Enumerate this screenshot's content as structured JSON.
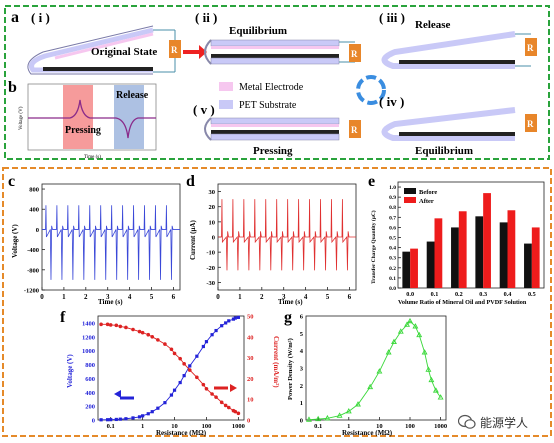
{
  "panel_a": {
    "letter": "a",
    "states": {
      "i": {
        "roman": "( i )",
        "title": "Original State"
      },
      "ii": {
        "roman": "( ii )",
        "title": "Equilibrium"
      },
      "iii": {
        "roman": "( iii )",
        "title": "Release"
      },
      "iv": {
        "roman": "( iv )",
        "title": "Equilibrium"
      },
      "v": {
        "roman": "( v )",
        "title": "Pressing"
      }
    },
    "resistor_label": "R",
    "legend": {
      "metal": "Metal Electrode",
      "pet": "PET Substrate"
    },
    "colors": {
      "metal": "#f6c7ef",
      "pet": "#c9c9f7",
      "resistor": "#e8862a",
      "frame": "#2aa33c"
    }
  },
  "panel_b": {
    "letter": "b",
    "pressing": "Pressing",
    "release": "Release",
    "ylabel": "Voltage (V)",
    "xlabel": "Time (s)"
  },
  "watermark": "能源学人",
  "chart_data": [
    {
      "id": "c",
      "letter": "c",
      "type": "line",
      "color": "#3a48d8",
      "xlabel": "Time (s)",
      "ylabel": "Voltage (V)",
      "xticks": [
        "0",
        "1",
        "2",
        "3",
        "4",
        "5",
        "6"
      ],
      "yticks": [
        "-1200",
        "-800",
        "-400",
        "0",
        "400",
        "800"
      ],
      "xlim": [
        0,
        6.3
      ],
      "ylim": [
        -1200,
        900
      ],
      "peaks": {
        "start": 0.18,
        "period": 0.5,
        "count": 12,
        "positive": 480,
        "negative": -1000
      }
    },
    {
      "id": "d",
      "letter": "d",
      "type": "line",
      "color": "#e03030",
      "xlabel": "Time (s)",
      "ylabel": "Current (μA)",
      "xticks": [
        "0",
        "1",
        "2",
        "3",
        "4",
        "5",
        "6"
      ],
      "yticks": [
        "-30",
        "-20",
        "-10",
        "0",
        "10",
        "20",
        "30"
      ],
      "xlim": [
        0,
        6.3
      ],
      "ylim": [
        -35,
        35
      ],
      "peaks": {
        "start": 0.18,
        "period": 0.5,
        "count": 12,
        "positive": 25,
        "negative": -22
      }
    },
    {
      "id": "e",
      "letter": "e",
      "type": "bar",
      "xlabel": "Volume Ratio of Mineral Oil and PVDF Solution",
      "ylabel": "Transfer Charge Quantity (μC)",
      "categories": [
        "0.0",
        "0.1",
        "0.2",
        "0.3",
        "0.4",
        "0.5"
      ],
      "yticks": [
        "0.0",
        "0.1",
        "0.2",
        "0.3",
        "0.4",
        "0.5",
        "0.6",
        "0.7",
        "0.8",
        "0.9",
        "1.0"
      ],
      "ylim": [
        0,
        1.05
      ],
      "series": [
        {
          "name": "Before",
          "color": "#111111",
          "values": [
            0.36,
            0.46,
            0.6,
            0.71,
            0.65,
            0.44
          ]
        },
        {
          "name": "After",
          "color": "#ee1c1c",
          "values": [
            0.39,
            0.69,
            0.76,
            0.94,
            0.77,
            0.6
          ]
        }
      ]
    },
    {
      "id": "f",
      "letter": "f",
      "type": "line",
      "xlabel": "Resistance (MΩ)",
      "ylabel": "Voltage (V)",
      "y2label": "Current (mA/m²)",
      "xlog": true,
      "xlim": [
        0.04,
        1500
      ],
      "xticks": [
        0.1,
        1,
        10,
        100,
        1000
      ],
      "xtick_labels": [
        "0.1",
        "1",
        "10",
        "100",
        "1000"
      ],
      "ylim": [
        0,
        1500
      ],
      "yticks": [
        "0",
        "200",
        "400",
        "600",
        "800",
        "1000",
        "1200",
        "1400"
      ],
      "y2lim": [
        0,
        50
      ],
      "y2ticks": [
        "0",
        "10",
        "20",
        "30",
        "40",
        "50"
      ],
      "series": [
        {
          "name": "Voltage",
          "color": "#2323d8",
          "axis": "left",
          "x": [
            0.05,
            0.08,
            0.1,
            0.15,
            0.2,
            0.3,
            0.5,
            0.8,
            1,
            1.5,
            2,
            3,
            5,
            8,
            10,
            15,
            20,
            30,
            50,
            80,
            100,
            150,
            200,
            300,
            400,
            500,
            700,
            800,
            1000
          ],
          "y": [
            3,
            4,
            5,
            8,
            12,
            18,
            30,
            45,
            60,
            90,
            120,
            170,
            250,
            360,
            430,
            540,
            640,
            780,
            920,
            1060,
            1130,
            1230,
            1290,
            1360,
            1400,
            1430,
            1455,
            1470,
            1480
          ]
        },
        {
          "name": "Current",
          "color": "#dd2222",
          "axis": "right",
          "x": [
            0.05,
            0.08,
            0.1,
            0.15,
            0.2,
            0.3,
            0.5,
            0.8,
            1,
            1.5,
            2,
            3,
            5,
            8,
            10,
            15,
            20,
            30,
            50,
            80,
            100,
            150,
            200,
            300,
            400,
            500,
            700,
            800,
            1000
          ],
          "y": [
            46,
            46,
            45.7,
            45.5,
            45,
            44.5,
            43.5,
            42.5,
            42,
            41,
            40,
            38.5,
            36.5,
            34,
            32,
            29.5,
            27,
            24,
            20.5,
            17,
            15,
            12.5,
            11,
            8.5,
            7,
            6,
            4.5,
            4,
            3.2
          ]
        }
      ]
    },
    {
      "id": "g",
      "letter": "g",
      "type": "line",
      "color": "#39d839",
      "xlabel": "Resistance (MΩ)",
      "ylabel": "Power Density (W/m²)",
      "xlog": true,
      "xlim": [
        0.04,
        1500
      ],
      "xticks": [
        0.1,
        1,
        10,
        100,
        1000
      ],
      "xtick_labels": [
        "0.1",
        "1",
        "10",
        "100",
        "1000"
      ],
      "ylim": [
        0,
        6
      ],
      "yticks": [
        "0",
        "1",
        "2",
        "3",
        "4",
        "5",
        "6"
      ],
      "x": [
        0.05,
        0.1,
        0.2,
        0.5,
        1,
        2,
        5,
        10,
        20,
        30,
        50,
        80,
        100,
        150,
        200,
        300,
        400,
        500,
        700,
        1000
      ],
      "y": [
        0.02,
        0.05,
        0.1,
        0.25,
        0.5,
        0.9,
        1.9,
        2.8,
        3.9,
        4.5,
        5.1,
        5.5,
        5.7,
        5.4,
        4.9,
        3.9,
        2.9,
        2.3,
        1.7,
        1.3
      ]
    }
  ]
}
